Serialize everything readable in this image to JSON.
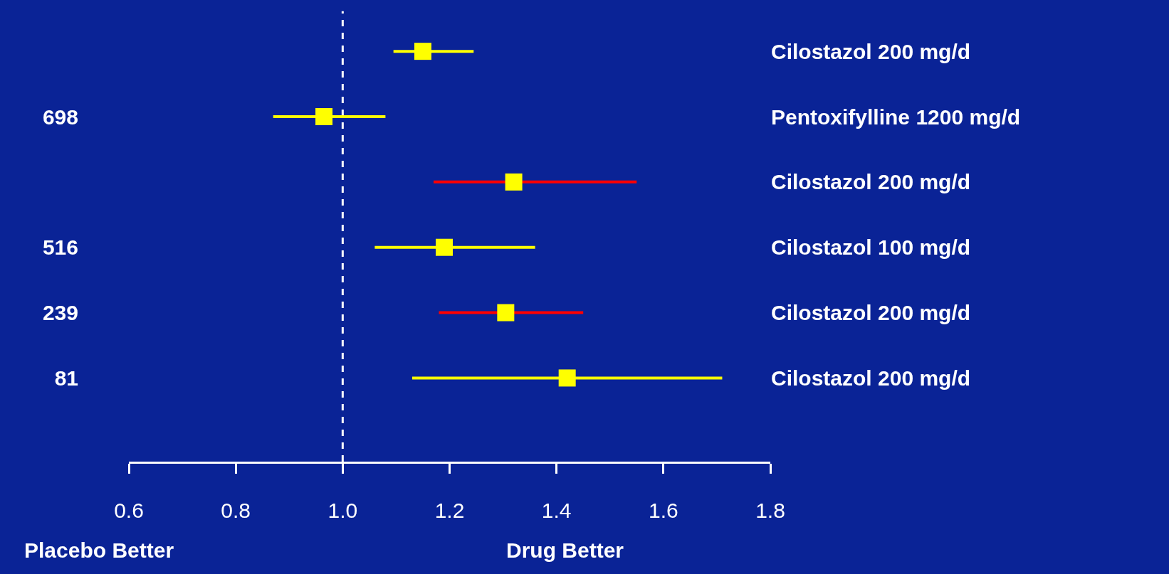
{
  "chart_data": {
    "type": "scatter",
    "orientation": "horizontal",
    "categories": [
      null,
      "698",
      null,
      "516",
      "239",
      "81"
    ],
    "y2_categories": [
      "Cilostazol 200 mg/d",
      "Pentoxifylline 1200 mg/d",
      "Cilostazol 200 mg/d",
      "Cilostazol 100 mg/d",
      "Cilostazol 200 mg/d",
      "Cilostazol 200 mg/d"
    ],
    "colors": [
      "#ffff00",
      "#ffff00",
      "#ffff00",
      "#ffff00",
      "#ffff00",
      "#ffff00"
    ],
    "series": [
      {
        "color": "#ffff00",
        "values": [
          1.15,
          0.965,
          null,
          1.19,
          null,
          1.42
        ],
        "errors": [
          [
            1.095,
            1.245
          ],
          [
            0.87,
            1.08
          ],
          null,
          [
            1.06,
            1.36
          ],
          null,
          [
            1.13,
            1.71
          ]
        ]
      },
      {
        "color": "#ff0000",
        "colors": [
          null,
          null,
          "#ffff00",
          null,
          "#ffff00",
          null
        ],
        "values": [
          null,
          null,
          1.32,
          null,
          1.305,
          null
        ],
        "errors": [
          null,
          null,
          [
            1.17,
            1.55
          ],
          null,
          [
            1.18,
            1.45
          ],
          null
        ]
      }
    ],
    "marker": "square",
    "xlim": [
      0.6,
      1.8
    ],
    "xticks": [
      0.6,
      0.8,
      {
        "value": 1.0,
        "label": "1.0"
      },
      1.2,
      1.4,
      1.6,
      1.8
    ],
    "ref_lines": [
      {
        "axis": "x",
        "value": 1.0,
        "color": "#ffffff",
        "line_style": "dashed"
      }
    ],
    "annotations": [
      "Placebo Better",
      "Drug Better"
    ],
    "legend": false,
    "grid": false
  }
}
